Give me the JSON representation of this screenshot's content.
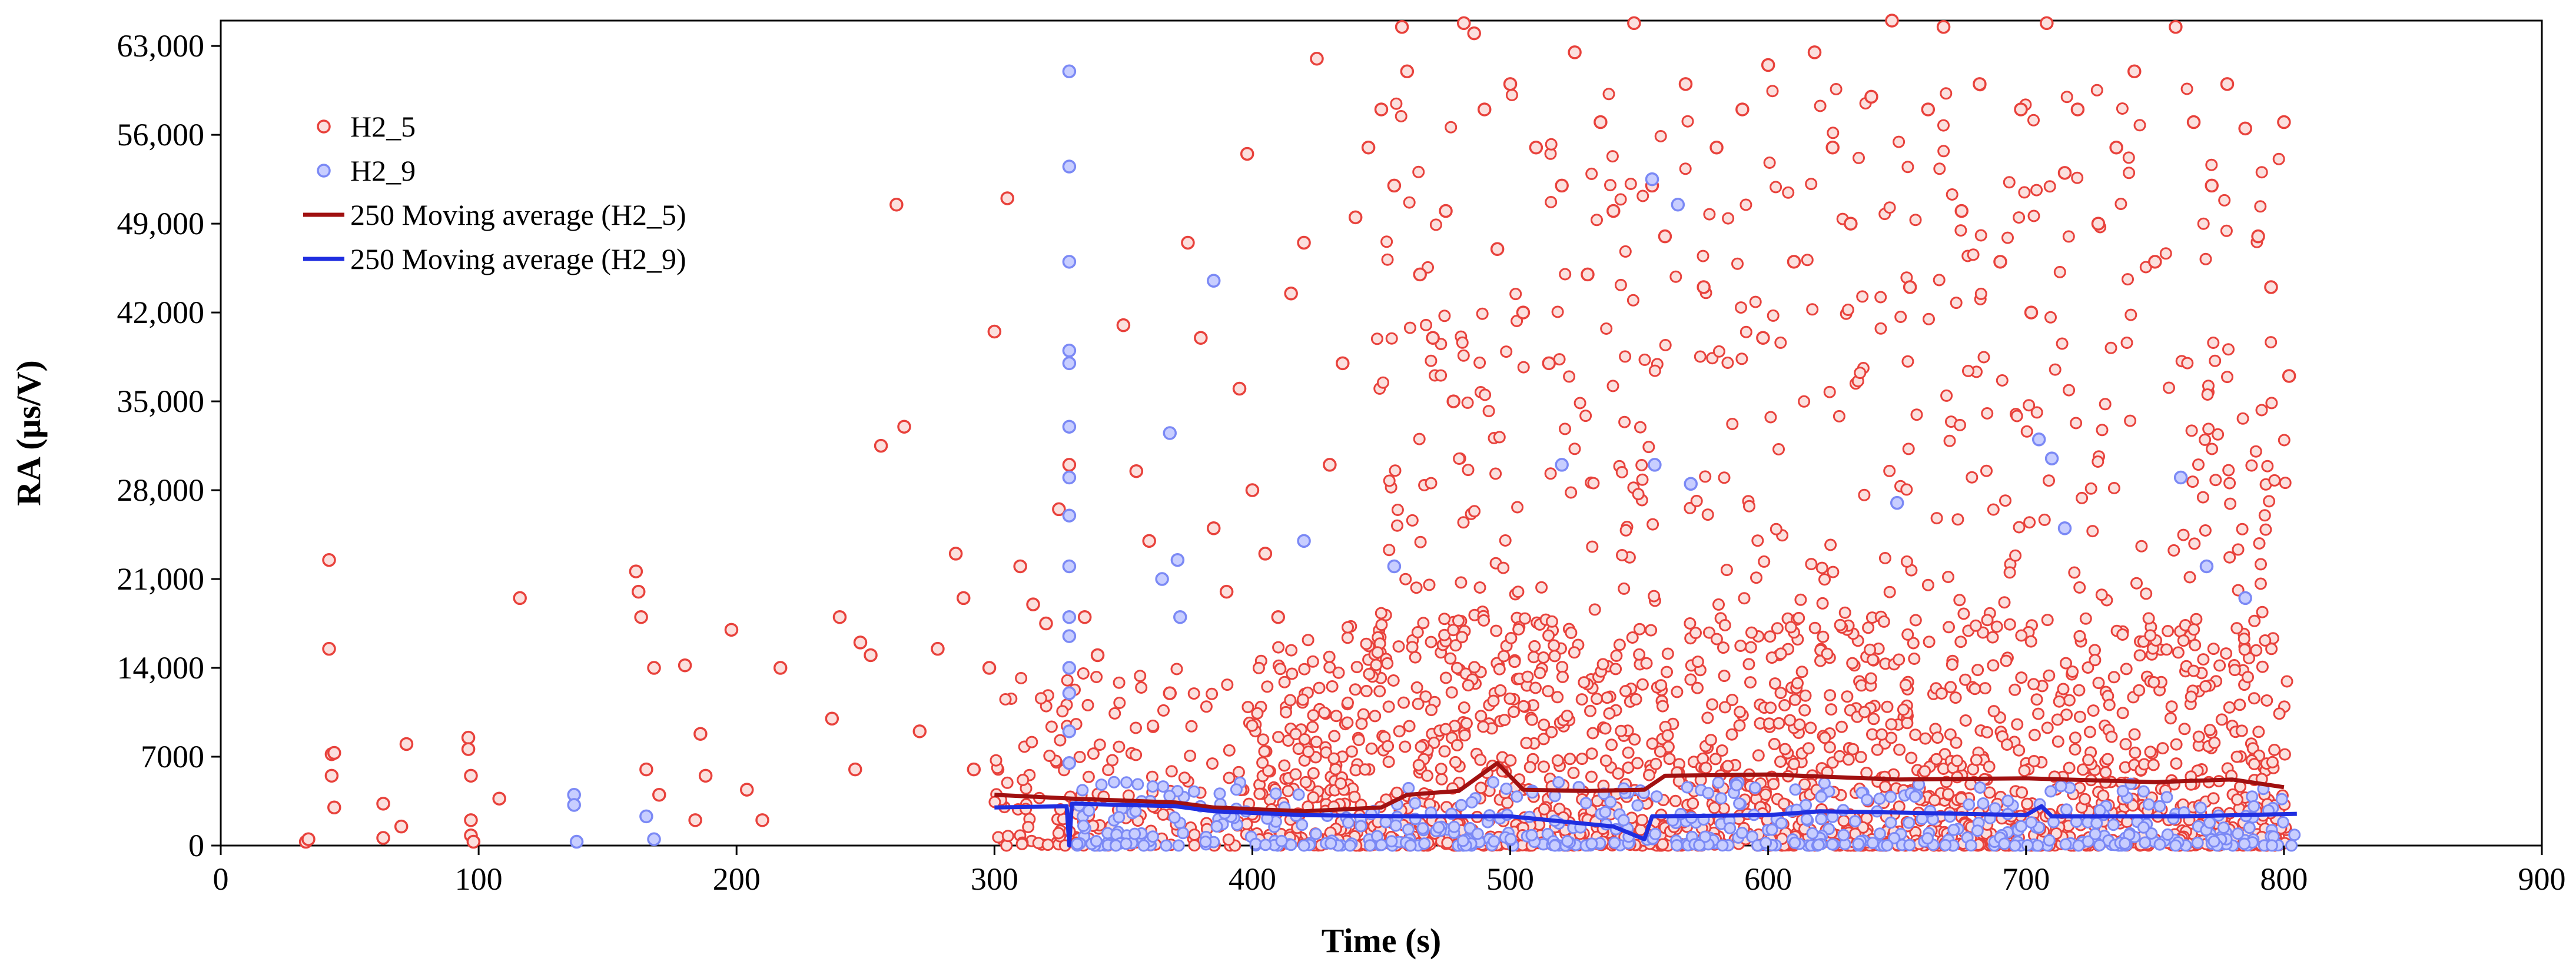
{
  "chart_data": {
    "type": "scatter",
    "title": "",
    "xlabel": "Time (s)",
    "ylabel": "RA (µs/V)",
    "xlim": [
      0,
      900
    ],
    "ylim": [
      0,
      65000
    ],
    "x_ticks": [
      0,
      100,
      200,
      300,
      400,
      500,
      600,
      700,
      800,
      900
    ],
    "x_tick_labels": [
      "0",
      "100",
      "200",
      "300",
      "400",
      "500",
      "600",
      "700",
      "800",
      "900"
    ],
    "y_ticks": [
      0,
      7000,
      14000,
      21000,
      28000,
      35000,
      42000,
      49000,
      56000,
      63000
    ],
    "y_tick_labels": [
      "0",
      "7000",
      "14,000",
      "21,000",
      "28,000",
      "35,000",
      "42,000",
      "49,000",
      "56,000",
      "63,000"
    ],
    "legend_position": "top-left",
    "series": [
      {
        "name": "H2_5",
        "kind": "scatter",
        "color": "#e8413b",
        "fill": "#fbe0de",
        "points": [
          [
            33,
            300
          ],
          [
            34,
            500
          ],
          [
            42,
            22500
          ],
          [
            42,
            15500
          ],
          [
            43,
            7200
          ],
          [
            43,
            5500
          ],
          [
            44,
            3000
          ],
          [
            44,
            7300
          ],
          [
            63,
            3300
          ],
          [
            63,
            600
          ],
          [
            70,
            1500
          ],
          [
            72,
            8000
          ],
          [
            96,
            8500
          ],
          [
            96,
            7600
          ],
          [
            97,
            5500
          ],
          [
            97,
            2000
          ],
          [
            97,
            800
          ],
          [
            98,
            300
          ],
          [
            108,
            3700
          ],
          [
            116,
            19500
          ],
          [
            161,
            21600
          ],
          [
            162,
            20000
          ],
          [
            163,
            18000
          ],
          [
            165,
            6000
          ],
          [
            168,
            14000
          ],
          [
            170,
            4000
          ],
          [
            180,
            14200
          ],
          [
            184,
            2000
          ],
          [
            186,
            8800
          ],
          [
            188,
            5500
          ],
          [
            198,
            17000
          ],
          [
            204,
            4400
          ],
          [
            210,
            2000
          ],
          [
            217,
            14000
          ],
          [
            237,
            10000
          ],
          [
            240,
            18000
          ],
          [
            246,
            6000
          ],
          [
            248,
            16000
          ],
          [
            252,
            15000
          ],
          [
            256,
            31500
          ],
          [
            262,
            50500
          ],
          [
            265,
            33000
          ],
          [
            271,
            9000
          ],
          [
            278,
            15500
          ],
          [
            285,
            23000
          ],
          [
            288,
            19500
          ],
          [
            292,
            6000
          ],
          [
            298,
            14000
          ],
          [
            300,
            40500
          ],
          [
            305,
            51000
          ],
          [
            310,
            22000
          ],
          [
            315,
            19000
          ],
          [
            320,
            17500
          ],
          [
            325,
            26500
          ],
          [
            329,
            30000
          ],
          [
            335,
            18000
          ],
          [
            340,
            15000
          ],
          [
            350,
            41000
          ],
          [
            355,
            29500
          ],
          [
            360,
            24000
          ],
          [
            368,
            12000
          ],
          [
            375,
            47500
          ],
          [
            380,
            40000
          ],
          [
            385,
            25000
          ],
          [
            390,
            20000
          ],
          [
            395,
            36000
          ],
          [
            398,
            54500
          ],
          [
            400,
            28000
          ],
          [
            405,
            23000
          ],
          [
            410,
            18000
          ],
          [
            415,
            43500
          ],
          [
            420,
            47500
          ],
          [
            425,
            62000
          ],
          [
            430,
            30000
          ],
          [
            435,
            38000
          ],
          [
            440,
            49500
          ],
          [
            445,
            55000
          ],
          [
            450,
            58000
          ],
          [
            455,
            52000
          ],
          [
            458,
            64500
          ],
          [
            460,
            61000
          ],
          [
            465,
            45000
          ],
          [
            470,
            40000
          ],
          [
            475,
            50000
          ],
          [
            478,
            35000
          ],
          [
            482,
            64800
          ],
          [
            486,
            64000
          ],
          [
            490,
            58000
          ],
          [
            495,
            47000
          ],
          [
            500,
            60000
          ],
          [
            505,
            42000
          ],
          [
            510,
            55000
          ],
          [
            515,
            38000
          ],
          [
            520,
            52000
          ],
          [
            525,
            62500
          ],
          [
            530,
            45000
          ],
          [
            535,
            57000
          ],
          [
            540,
            50000
          ],
          [
            548,
            64800
          ],
          [
            555,
            52000
          ],
          [
            560,
            48000
          ],
          [
            568,
            60000
          ],
          [
            575,
            44000
          ],
          [
            580,
            55000
          ],
          [
            590,
            58000
          ],
          [
            598,
            40000
          ],
          [
            600,
            61500
          ],
          [
            610,
            46000
          ],
          [
            618,
            62500
          ],
          [
            625,
            55000
          ],
          [
            632,
            49000
          ],
          [
            640,
            59000
          ],
          [
            648,
            65000
          ],
          [
            655,
            44000
          ],
          [
            662,
            58000
          ],
          [
            668,
            64500
          ],
          [
            675,
            50000
          ],
          [
            682,
            60000
          ],
          [
            690,
            46000
          ],
          [
            698,
            58000
          ],
          [
            702,
            42000
          ],
          [
            708,
            64800
          ],
          [
            715,
            53000
          ],
          [
            720,
            58000
          ],
          [
            728,
            49000
          ],
          [
            735,
            55000
          ],
          [
            742,
            61000
          ],
          [
            750,
            46000
          ],
          [
            758,
            64500
          ],
          [
            765,
            57000
          ],
          [
            772,
            52000
          ],
          [
            778,
            60000
          ],
          [
            785,
            56500
          ],
          [
            790,
            48000
          ],
          [
            795,
            44000
          ],
          [
            800,
            57000
          ],
          [
            802,
            37000
          ]
        ]
      },
      {
        "name": "H2_9",
        "kind": "scatter",
        "color": "#7b89f5",
        "fill": "#c8ceff",
        "points": [
          [
            137,
            4000
          ],
          [
            137,
            3200
          ],
          [
            138,
            300
          ],
          [
            165,
            2300
          ],
          [
            168,
            500
          ],
          [
            329,
            61000
          ],
          [
            329,
            53500
          ],
          [
            329,
            46000
          ],
          [
            329,
            39000
          ],
          [
            329,
            38000
          ],
          [
            329,
            33000
          ],
          [
            329,
            29000
          ],
          [
            329,
            26000
          ],
          [
            329,
            22000
          ],
          [
            329,
            18000
          ],
          [
            329,
            16500
          ],
          [
            329,
            14000
          ],
          [
            329,
            12000
          ],
          [
            329,
            9000
          ],
          [
            329,
            6500
          ],
          [
            365,
            21000
          ],
          [
            368,
            32500
          ],
          [
            371,
            22500
          ],
          [
            372,
            18000
          ],
          [
            385,
            44500
          ],
          [
            420,
            24000
          ],
          [
            455,
            22000
          ],
          [
            520,
            30000
          ],
          [
            555,
            52500
          ],
          [
            556,
            30000
          ],
          [
            565,
            50500
          ],
          [
            570,
            28500
          ],
          [
            650,
            27000
          ],
          [
            705,
            32000
          ],
          [
            710,
            30500
          ],
          [
            715,
            25000
          ],
          [
            760,
            29000
          ],
          [
            770,
            22000
          ],
          [
            785,
            19500
          ]
        ]
      },
      {
        "name": "250 Moving average (H2_5)",
        "kind": "line",
        "color": "#a01010",
        "points": [
          [
            300,
            4000
          ],
          [
            330,
            3700
          ],
          [
            370,
            3400
          ],
          [
            385,
            3000
          ],
          [
            420,
            2700
          ],
          [
            450,
            3000
          ],
          [
            460,
            4000
          ],
          [
            480,
            4300
          ],
          [
            495,
            6500
          ],
          [
            505,
            4400
          ],
          [
            530,
            4300
          ],
          [
            552,
            4400
          ],
          [
            560,
            5500
          ],
          [
            600,
            5600
          ],
          [
            650,
            5200
          ],
          [
            700,
            5300
          ],
          [
            750,
            5000
          ],
          [
            780,
            5200
          ],
          [
            800,
            4600
          ]
        ]
      },
      {
        "name": "250 Moving average (H2_9)",
        "kind": "line",
        "color": "#1f2ee0",
        "points": [
          [
            300,
            3000
          ],
          [
            328,
            3100
          ],
          [
            329,
            0
          ],
          [
            330,
            3300
          ],
          [
            370,
            3100
          ],
          [
            385,
            2700
          ],
          [
            420,
            2400
          ],
          [
            460,
            2300
          ],
          [
            500,
            2300
          ],
          [
            540,
            1500
          ],
          [
            552,
            500
          ],
          [
            555,
            2300
          ],
          [
            600,
            2400
          ],
          [
            620,
            2700
          ],
          [
            650,
            2600
          ],
          [
            700,
            2400
          ],
          [
            706,
            3100
          ],
          [
            710,
            2300
          ],
          [
            760,
            2300
          ],
          [
            805,
            2500
          ]
        ]
      }
    ]
  }
}
